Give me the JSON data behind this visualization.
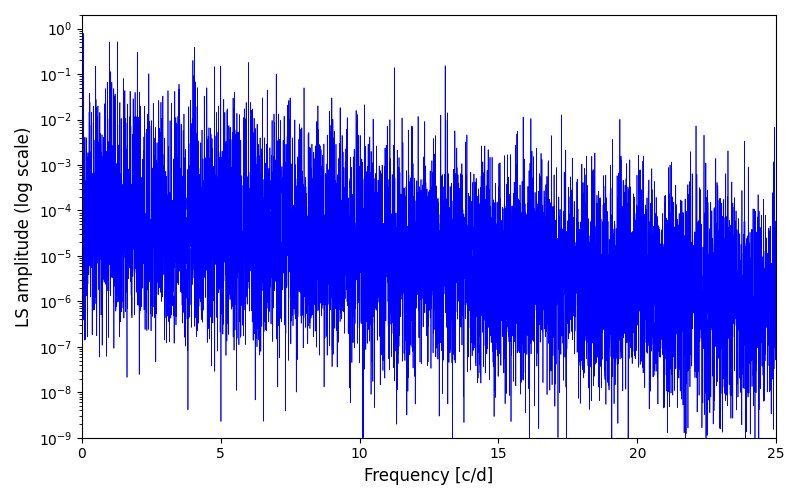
{
  "title": "",
  "xlabel": "Frequency [c/d]",
  "ylabel": "LS amplitude (log scale)",
  "xlim": [
    0,
    25
  ],
  "ylim_log": [
    1e-09,
    2
  ],
  "line_color": "#0000FF",
  "line_width": 0.5,
  "background_color": "#ffffff",
  "yscale": "log",
  "figsize": [
    8.0,
    5.0
  ],
  "dpi": 100,
  "seed": 12345,
  "n_points": 8000,
  "freq_max": 25.0
}
